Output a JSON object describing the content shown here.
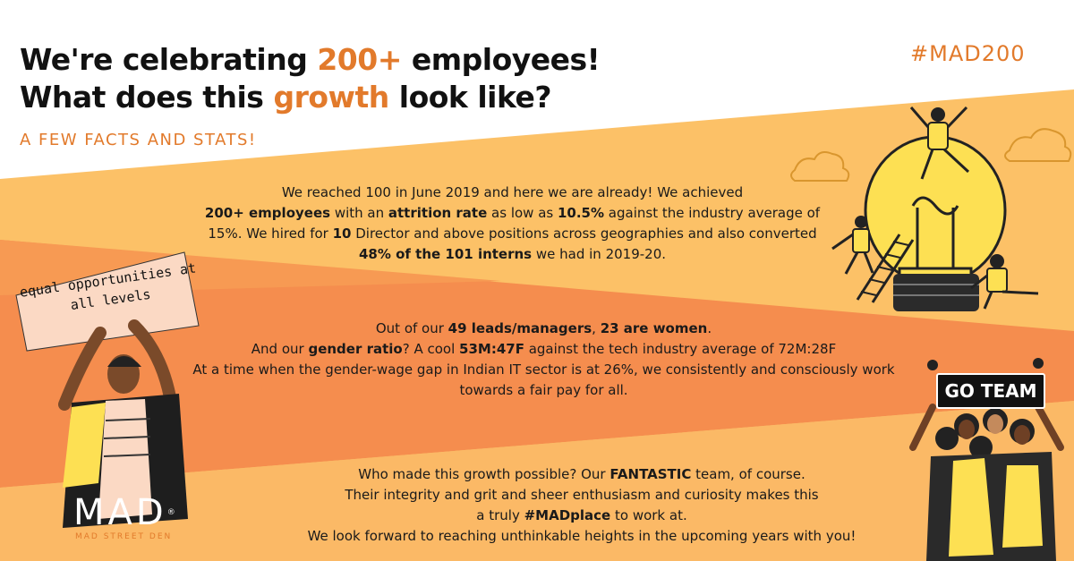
{
  "headline": {
    "line1_pre": "We're celebrating ",
    "line1_hl": "200+",
    "line1_post": " employees!",
    "line2_pre": "What does this ",
    "line2_hl": "growth",
    "line2_post": " look like?"
  },
  "hashtag": "#MAD200",
  "subtitle": "A FEW FACTS AND STATS!",
  "sign_text": "equal opportunities at all levels",
  "go_team": "GO TEAM",
  "para1": {
    "a": "We reached 100 in June 2019 and here we are already! We achieved",
    "b": "200+ employees",
    "c": " with an ",
    "d": "attrition rate",
    "e": " as low as ",
    "f": "10.5%",
    "g": " against the industry average of 15%. We hired for ",
    "h": "10",
    "i": " Director and above positions across geographies and also converted ",
    "j": "48% of the 101 interns",
    "k": " we had in 2019-20."
  },
  "para2": {
    "a": "Out of our ",
    "b": "49 leads/managers",
    "c": ", ",
    "d": "23 are women",
    "e": ".",
    "f": "And our ",
    "g": "gender ratio",
    "h": "? A cool ",
    "i": "53M:47F",
    "j": " against the tech industry average of 72M:28F",
    "k": "At a time when the gender-wage gap in Indian IT sector is at 26%, we consistently and consciously work towards a fair pay for all."
  },
  "para3": {
    "a": "Who made this growth possible? Our ",
    "b": "FANTASTIC",
    "c": " team, of course.",
    "d": "Their integrity and grit and sheer enthusiasm and curiosity makes this",
    "e": "a truly ",
    "f": "#MADplace",
    "g": " to work at.",
    "h": "We look forward to reaching unthinkable heights in the upcoming years with you!"
  },
  "logo": {
    "mark": "MAD",
    "registered": "®",
    "sub": "MAD STREET DEN"
  },
  "colors": {
    "accent": "#e27a2b",
    "band_light": "#fbb65e",
    "band_mid": "#f9a84c",
    "band_dark": "#f58d4e",
    "text": "#111111"
  },
  "illustrations": [
    "lightbulb-illustration",
    "person-holding-sign-illustration",
    "team-group-illustration",
    "cloud-icon"
  ]
}
